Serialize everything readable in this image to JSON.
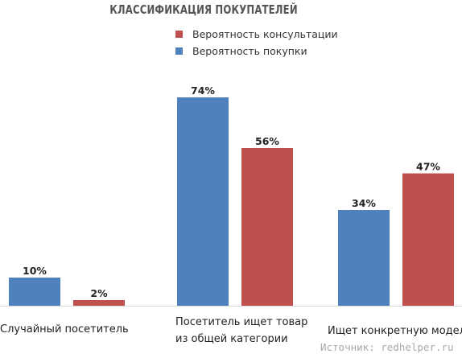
{
  "chart_data": {
    "type": "bar",
    "title": "КЛАССИФИКАЦИЯ ПОКУПАТЕЛЕЙ",
    "categories": [
      "Случайный посетитель",
      "Посетитель ищет товар\nиз общей категории",
      "Ищет конкретную модель"
    ],
    "category_lines": [
      [
        "Случайный посетитель"
      ],
      [
        "Посетитель ищет товар",
        "из общей категории"
      ],
      [
        "Ищет конкретную модель"
      ]
    ],
    "series": [
      {
        "name": "Вероятность покупки",
        "values": [
          10,
          74,
          34
        ],
        "labels": [
          "10%",
          "74%",
          "34%"
        ],
        "color": "#4f81bd"
      },
      {
        "name": "Вероятность консультации",
        "values": [
          2,
          56,
          47
        ],
        "labels": [
          "2%",
          "56%",
          "47%"
        ],
        "color": "#c0504d"
      }
    ],
    "legend": [
      {
        "label": "Вероятность консультации",
        "color": "#c0504d"
      },
      {
        "label": "Вероятность покупки",
        "color": "#4f81bd"
      }
    ],
    "ylim": [
      0,
      80
    ],
    "grid": false,
    "legend_position": "top"
  },
  "source": "Источник: redhelper.ru",
  "colors": {
    "axis": "#d9d9d9",
    "title": "#555555",
    "source": "#aaaaaa"
  }
}
